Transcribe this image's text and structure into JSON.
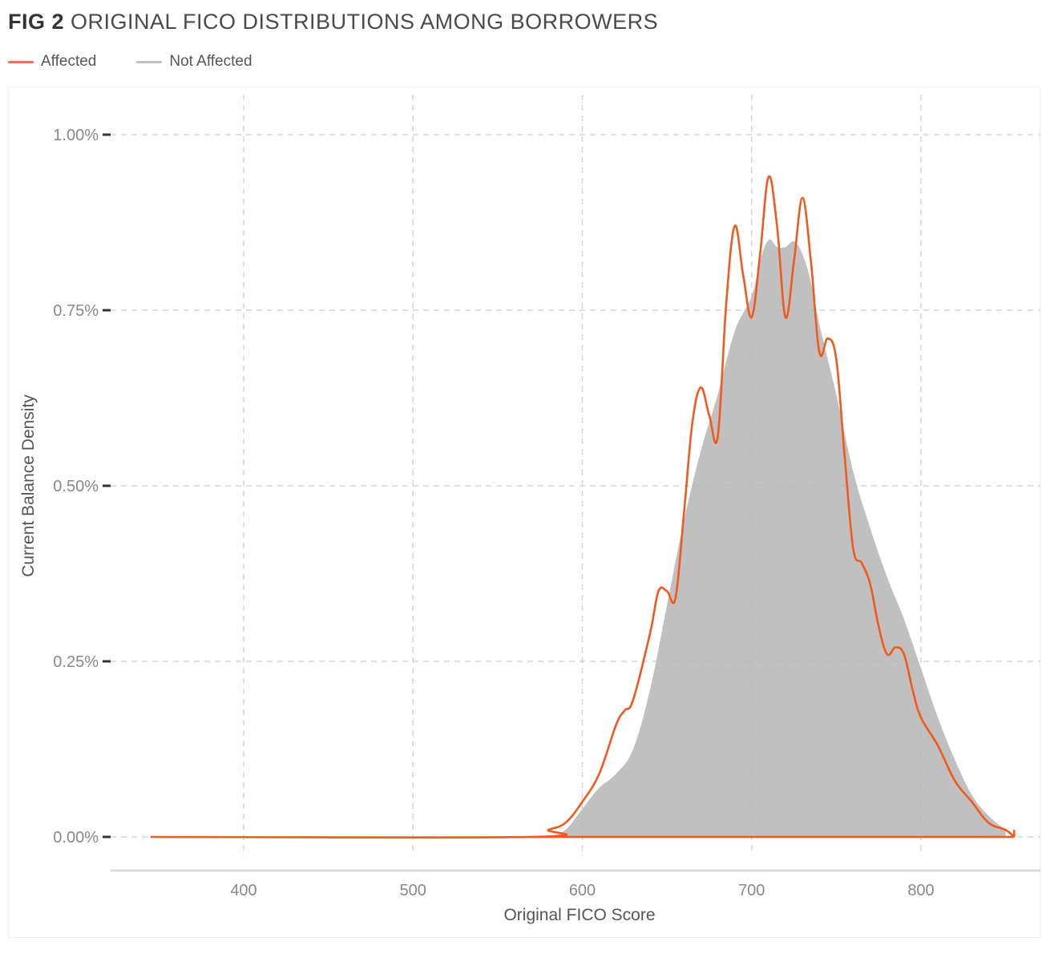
{
  "figure": {
    "number": "FIG 2",
    "title": "ORIGINAL FICO DISTRIBUTIONS AMONG BORROWERS"
  },
  "legend": {
    "items": [
      {
        "label": "Affected",
        "color": "#f07064"
      },
      {
        "label": "Not Affected",
        "color": "#c0c0c0"
      }
    ]
  },
  "chart_data": {
    "type": "area",
    "xlabel": "Original FICO Score",
    "ylabel": "Current Balance Density",
    "xlim": [
      345,
      855
    ],
    "ylim": [
      -0.0005,
      0.0102
    ],
    "x_ticks": [
      400,
      500,
      600,
      700,
      800
    ],
    "x_tick_labels": [
      "400",
      "500",
      "600",
      "700",
      "800"
    ],
    "y_ticks": [
      0,
      0.0025,
      0.005,
      0.0075,
      0.01
    ],
    "y_tick_labels": [
      "0.00%",
      "0.25%",
      "0.50%",
      "0.75%",
      "1.00%"
    ],
    "grid": true,
    "legend_position": "top-left",
    "series": [
      {
        "name": "Not Affected",
        "kind": "area",
        "color": "#c0c0c0",
        "points": [
          [
            580,
            0
          ],
          [
            590,
            0.0001
          ],
          [
            600,
            0.0004
          ],
          [
            610,
            0.0007
          ],
          [
            620,
            0.0009
          ],
          [
            630,
            0.00125
          ],
          [
            640,
            0.0021
          ],
          [
            650,
            0.0033
          ],
          [
            660,
            0.0045
          ],
          [
            670,
            0.0055
          ],
          [
            680,
            0.0063
          ],
          [
            690,
            0.0072
          ],
          [
            700,
            0.0077
          ],
          [
            705,
            0.0082
          ],
          [
            710,
            0.0085
          ],
          [
            715,
            0.0084
          ],
          [
            720,
            0.0084
          ],
          [
            725,
            0.00848
          ],
          [
            730,
            0.0083
          ],
          [
            735,
            0.0079
          ],
          [
            740,
            0.0073
          ],
          [
            750,
            0.0063
          ],
          [
            760,
            0.0052
          ],
          [
            770,
            0.0044
          ],
          [
            780,
            0.0037
          ],
          [
            790,
            0.0031
          ],
          [
            800,
            0.0024
          ],
          [
            810,
            0.0017
          ],
          [
            820,
            0.0011
          ],
          [
            830,
            0.0006
          ],
          [
            840,
            0.0003
          ],
          [
            850,
            0.0001
          ]
        ]
      },
      {
        "name": "Affected",
        "kind": "line",
        "color": "#f05a1e",
        "points": [
          [
            345,
            0
          ],
          [
            570,
            0
          ],
          [
            580,
            0.0001
          ],
          [
            590,
            0.0002
          ],
          [
            600,
            0.0005
          ],
          [
            610,
            0.0009
          ],
          [
            620,
            0.0016
          ],
          [
            625,
            0.0018
          ],
          [
            630,
            0.00195
          ],
          [
            640,
            0.0029
          ],
          [
            645,
            0.0035
          ],
          [
            650,
            0.0035
          ],
          [
            655,
            0.0034
          ],
          [
            660,
            0.0046
          ],
          [
            665,
            0.0059
          ],
          [
            670,
            0.0064
          ],
          [
            675,
            0.006
          ],
          [
            680,
            0.0057
          ],
          [
            685,
            0.0076
          ],
          [
            690,
            0.0087
          ],
          [
            695,
            0.008
          ],
          [
            700,
            0.0074
          ],
          [
            705,
            0.0083
          ],
          [
            710,
            0.0094
          ],
          [
            715,
            0.0087
          ],
          [
            720,
            0.0074
          ],
          [
            725,
            0.0082
          ],
          [
            730,
            0.0091
          ],
          [
            735,
            0.0082
          ],
          [
            740,
            0.0069
          ],
          [
            745,
            0.0071
          ],
          [
            750,
            0.0068
          ],
          [
            755,
            0.0054
          ],
          [
            760,
            0.0041
          ],
          [
            765,
            0.0039
          ],
          [
            770,
            0.0036
          ],
          [
            775,
            0.003
          ],
          [
            780,
            0.0026
          ],
          [
            785,
            0.0027
          ],
          [
            790,
            0.0026
          ],
          [
            795,
            0.0021
          ],
          [
            800,
            0.0017
          ],
          [
            810,
            0.0013
          ],
          [
            820,
            0.0008
          ],
          [
            830,
            0.0005
          ],
          [
            840,
            0.0002
          ],
          [
            850,
            0.0001
          ],
          [
            855,
            0
          ]
        ]
      }
    ]
  }
}
